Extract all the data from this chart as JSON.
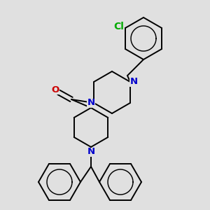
{
  "bg_color": "#e0e0e0",
  "bond_color": "#000000",
  "N_color": "#0000cc",
  "O_color": "#cc0000",
  "Cl_color": "#00aa00",
  "line_width": 1.4,
  "font_size": 9.5,
  "fig_width": 3.0,
  "fig_height": 3.0,
  "dpi": 100,
  "xlim": [
    0,
    300
  ],
  "ylim": [
    0,
    300
  ]
}
